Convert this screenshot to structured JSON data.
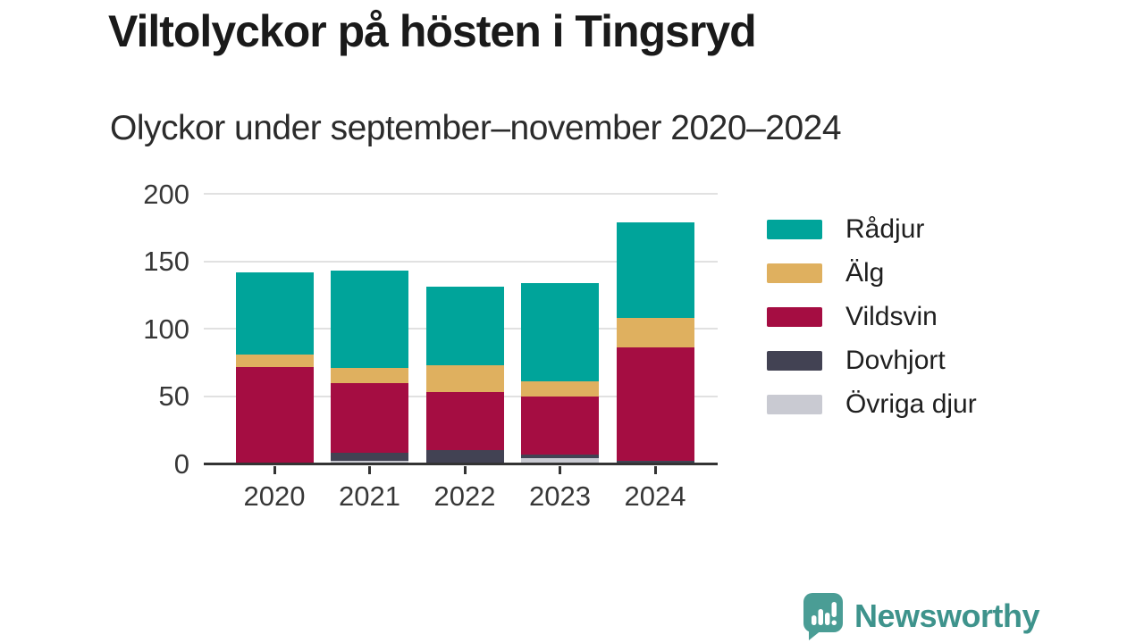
{
  "header": {
    "title": "Viltolyckor på hösten i Tingsryd",
    "subtitle": "Olyckor under september–november 2020–2024"
  },
  "chart_data": {
    "type": "bar",
    "stacked": true,
    "title": "Viltolyckor på hösten i Tingsryd",
    "subtitle": "Olyckor under september–november 2020–2024",
    "categories": [
      "2020",
      "2021",
      "2022",
      "2023",
      "2024"
    ],
    "series": [
      {
        "name": "Rådjur",
        "color": "#00a49a",
        "values": [
          61,
          72,
          58,
          73,
          71
        ]
      },
      {
        "name": "Älg",
        "color": "#dfb05f",
        "values": [
          9,
          11,
          20,
          11,
          22
        ]
      },
      {
        "name": "Vildsvin",
        "color": "#a50d42",
        "values": [
          72,
          52,
          43,
          43,
          84
        ]
      },
      {
        "name": "Dovhjort",
        "color": "#424253",
        "values": [
          0,
          6,
          9,
          3,
          1
        ]
      },
      {
        "name": "Övriga djur",
        "color": "#c9cad2",
        "values": [
          0,
          2,
          1,
          4,
          1
        ]
      }
    ],
    "stack_order_bottom_to_top": [
      "Övriga djur",
      "Dovhjort",
      "Vildsvin",
      "Älg",
      "Rådjur"
    ],
    "ylim": [
      0,
      200
    ],
    "yticks": [
      0,
      50,
      100,
      150,
      200
    ],
    "grid": "horizontal",
    "legend_position": "right"
  },
  "footer": {
    "brand": "Newsworthy",
    "logo_icon": "bar-chart-speech-bubble-icon"
  },
  "colors": {
    "brand_teal": "#3e938c",
    "axis": "#333333",
    "gridline": "#e1e1e1",
    "title_text": "#1a1a1a"
  }
}
